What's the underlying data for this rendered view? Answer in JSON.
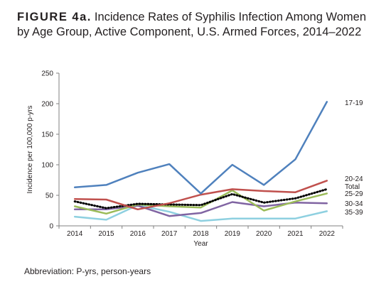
{
  "figure": {
    "label": "FIGURE 4a.",
    "title": "Incidence Rates of Syphilis Infection Among Women by Age Group, Active Component, U.S. Armed Forces, 2014–2022",
    "footnote": "Abbreviation: P-yrs, person-years"
  },
  "chart_data": {
    "type": "line",
    "title": "Incidence Rates of Syphilis Infection Among Women by Age Group, Active Component, U.S. Armed Forces, 2014–2022",
    "xlabel": "Year",
    "ylabel": "Incidence per 100,000 p-yrs",
    "x": [
      "2014",
      "2015",
      "2016",
      "2017",
      "2018",
      "2019",
      "2020",
      "2021",
      "2022"
    ],
    "ylim": [
      0,
      250
    ],
    "yticks": [
      0,
      50,
      100,
      150,
      200,
      250
    ],
    "grid": false,
    "legend": "series labels at right end of lines",
    "series": [
      {
        "name": "17-19",
        "color": "#4f81bd",
        "style": "solid",
        "values": [
          63,
          67,
          87,
          101,
          53,
          100,
          67,
          109,
          203
        ]
      },
      {
        "name": "20-24",
        "color": "#c0504d",
        "style": "solid",
        "values": [
          44,
          43,
          27,
          37,
          51,
          60,
          57,
          55,
          74
        ]
      },
      {
        "name": "Total",
        "color": "#000000",
        "style": "dotted",
        "values": [
          40,
          29,
          36,
          35,
          34,
          52,
          38,
          45,
          60
        ]
      },
      {
        "name": "25-29",
        "color": "#9bbb59",
        "style": "solid",
        "values": [
          32,
          20,
          35,
          32,
          30,
          58,
          25,
          40,
          53
        ]
      },
      {
        "name": "30-34",
        "color": "#8064a2",
        "style": "solid",
        "values": [
          27,
          27,
          33,
          16,
          21,
          39,
          32,
          38,
          37
        ]
      },
      {
        "name": "35-39",
        "color": "#8ed0e0",
        "style": "solid",
        "values": [
          15,
          10,
          34,
          23,
          8,
          12,
          12,
          12,
          24
        ]
      }
    ]
  }
}
